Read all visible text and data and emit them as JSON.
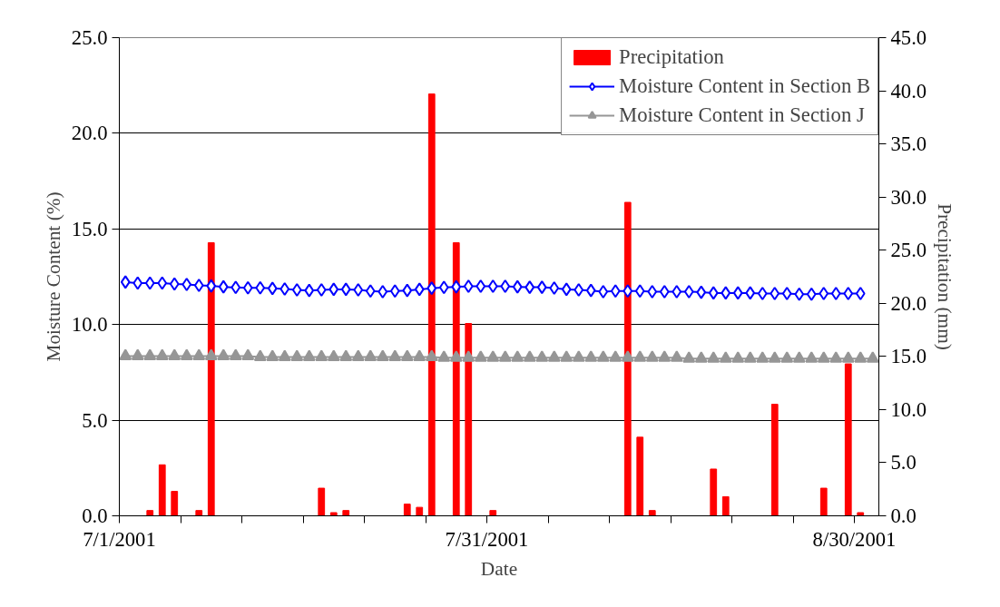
{
  "chart_data": {
    "type": "line",
    "xlabel": "Date",
    "ylabel": "Moisture Content (%)",
    "y2label": "Precipitation (mm)",
    "x": [
      "2001-07-01T12:00",
      "2001-07-02T12:00",
      "2001-07-03T12:00",
      "2001-07-04T12:00",
      "2001-07-05T12:00",
      "2001-07-06T12:00",
      "2001-07-07T12:00",
      "2001-07-08T12:00",
      "2001-07-09T12:00",
      "2001-07-10T12:00",
      "2001-07-11T12:00",
      "2001-07-12T12:00",
      "2001-07-13T12:00",
      "2001-07-14T12:00",
      "2001-07-15T12:00",
      "2001-07-16T12:00",
      "2001-07-17T12:00",
      "2001-07-18T12:00",
      "2001-07-19T12:00",
      "2001-07-20T12:00",
      "2001-07-21T12:00",
      "2001-07-22T12:00",
      "2001-07-23T12:00",
      "2001-07-24T12:00",
      "2001-07-25T12:00",
      "2001-07-26T12:00",
      "2001-07-27T12:00",
      "2001-07-28T12:00",
      "2001-07-29T12:00",
      "2001-07-30T12:00",
      "2001-07-31T12:00",
      "2001-08-01T12:00",
      "2001-08-02T12:00",
      "2001-08-03T12:00",
      "2001-08-04T12:00",
      "2001-08-05T12:00",
      "2001-08-06T12:00",
      "2001-08-07T12:00",
      "2001-08-08T12:00",
      "2001-08-09T12:00",
      "2001-08-10T12:00",
      "2001-08-11T12:00",
      "2001-08-12T12:00",
      "2001-08-13T12:00",
      "2001-08-14T12:00",
      "2001-08-15T12:00",
      "2001-08-16T12:00",
      "2001-08-17T12:00",
      "2001-08-18T12:00",
      "2001-08-19T12:00",
      "2001-08-20T12:00",
      "2001-08-21T12:00",
      "2001-08-22T12:00",
      "2001-08-23T12:00",
      "2001-08-24T12:00",
      "2001-08-25T12:00",
      "2001-08-26T12:00",
      "2001-08-27T12:00",
      "2001-08-28T12:00",
      "2001-08-29T12:00",
      "2001-08-30T12:00",
      "2001-08-31T12:00"
    ],
    "series": [
      {
        "name": "Precipitation",
        "type": "bar",
        "axis": "y2",
        "color": "#ff0000",
        "values": [
          0,
          0,
          0.5,
          4.8,
          2.3,
          0,
          0.5,
          25.7,
          0,
          0,
          0,
          0,
          0,
          0,
          0,
          0,
          2.6,
          0.3,
          0.5,
          0,
          0,
          0,
          0,
          1.1,
          0.8,
          39.7,
          0,
          25.7,
          18.1,
          0,
          0.5,
          0,
          0,
          0,
          0,
          0,
          0,
          0,
          0,
          0,
          0,
          29.5,
          7.4,
          0.5,
          0,
          0,
          0,
          0,
          4.4,
          1.8,
          0,
          0,
          0,
          10.5,
          0,
          0,
          0,
          2.6,
          0,
          14.3,
          0.3,
          0
        ]
      },
      {
        "name": "Moisture Content in Section B",
        "marker": "diamond",
        "color": "#0000ff",
        "values": [
          12.22,
          12.17,
          12.17,
          12.17,
          12.12,
          12.1,
          12.05,
          12.02,
          11.97,
          11.94,
          11.92,
          11.92,
          11.89,
          11.86,
          11.81,
          11.78,
          11.81,
          11.84,
          11.84,
          11.81,
          11.75,
          11.72,
          11.75,
          11.78,
          11.84,
          11.9,
          11.94,
          11.97,
          12.0,
          12.0,
          12.0,
          12.0,
          11.97,
          11.95,
          11.95,
          11.91,
          11.84,
          11.81,
          11.78,
          11.72,
          11.75,
          11.75,
          11.75,
          11.72,
          11.72,
          11.72,
          11.72,
          11.69,
          11.65,
          11.65,
          11.65,
          11.65,
          11.62,
          11.62,
          11.62,
          11.59,
          11.59,
          11.62,
          11.62,
          11.62,
          11.62,
          null
        ]
      },
      {
        "name": "Moisture Content in Section J",
        "marker": "triangle",
        "color": "#969696",
        "values": [
          8.35,
          8.35,
          8.35,
          8.35,
          8.35,
          8.35,
          8.35,
          8.35,
          8.35,
          8.35,
          8.35,
          8.3,
          8.3,
          8.3,
          8.3,
          8.3,
          8.3,
          8.3,
          8.3,
          8.3,
          8.3,
          8.3,
          8.3,
          8.3,
          8.3,
          8.3,
          8.27,
          8.27,
          8.27,
          8.27,
          8.27,
          8.27,
          8.27,
          8.27,
          8.27,
          8.27,
          8.27,
          8.27,
          8.27,
          8.27,
          8.27,
          8.27,
          8.27,
          8.27,
          8.27,
          8.27,
          8.22,
          8.22,
          8.22,
          8.22,
          8.22,
          8.22,
          8.22,
          8.22,
          8.22,
          8.22,
          8.22,
          8.22,
          8.22,
          8.22,
          8.22,
          8.22
        ]
      }
    ],
    "xlim": [
      "2001-07-01",
      "2001-09-01"
    ],
    "xticks": [
      {
        "value": "2001-07-01",
        "label": "7/1/2001"
      },
      {
        "value": "2001-07-06",
        "label": null
      },
      {
        "value": "2001-07-11",
        "label": null
      },
      {
        "value": "2001-07-16",
        "label": null
      },
      {
        "value": "2001-07-21",
        "label": null
      },
      {
        "value": "2001-07-26",
        "label": null
      },
      {
        "value": "2001-07-31",
        "label": "7/31/2001"
      },
      {
        "value": "2001-08-05",
        "label": null
      },
      {
        "value": "2001-08-10",
        "label": null
      },
      {
        "value": "2001-08-15",
        "label": null
      },
      {
        "value": "2001-08-20",
        "label": null
      },
      {
        "value": "2001-08-25",
        "label": null
      },
      {
        "value": "2001-08-30",
        "label": "8/30/2001"
      }
    ],
    "ylim": [
      0,
      25
    ],
    "yticks": [
      {
        "value": 0,
        "label": "0.0"
      },
      {
        "value": 5,
        "label": "5.0"
      },
      {
        "value": 10,
        "label": "10.0"
      },
      {
        "value": 15,
        "label": "15.0"
      },
      {
        "value": 20,
        "label": "20.0"
      },
      {
        "value": 25,
        "label": "25.0"
      }
    ],
    "y2lim": [
      0,
      45
    ],
    "y2ticks": [
      {
        "value": 0,
        "label": "0.0"
      },
      {
        "value": 5,
        "label": "5.0"
      },
      {
        "value": 10,
        "label": "10.0"
      },
      {
        "value": 15,
        "label": "15.0"
      },
      {
        "value": 20,
        "label": "20.0"
      },
      {
        "value": 25,
        "label": "25.0"
      },
      {
        "value": 30,
        "label": "30.0"
      },
      {
        "value": 35,
        "label": "35.0"
      },
      {
        "value": 40,
        "label": "40.0"
      },
      {
        "value": 45,
        "label": "45.0"
      }
    ],
    "grid": "y",
    "legend": "top right"
  }
}
